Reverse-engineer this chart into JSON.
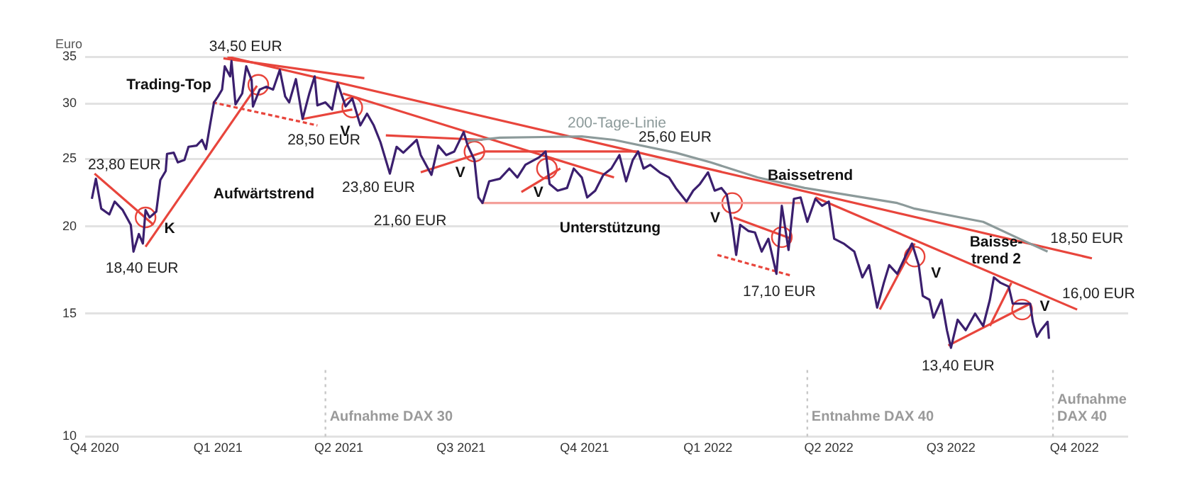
{
  "chart_data": {
    "type": "line",
    "ylabel": "Euro",
    "log": "y",
    "grid": "y",
    "legend": false,
    "xlim": [
      "2020-09-24",
      "2022-11-10"
    ],
    "xticks": [
      {
        "value": "2020-10-01",
        "label": "Q4 2020"
      },
      {
        "value": "2021-01-01",
        "label": "Q1 2021"
      },
      {
        "value": "2021-04-01",
        "label": "Q2 2021"
      },
      {
        "value": "2021-07-01",
        "label": "Q3 2021"
      },
      {
        "value": "2021-10-01",
        "label": "Q4 2021"
      },
      {
        "value": "2022-01-01",
        "label": "Q1 2022"
      },
      {
        "value": "2022-04-01",
        "label": "Q2 2022"
      },
      {
        "value": "2022-07-01",
        "label": "Q3 2022"
      },
      {
        "value": "2022-10-01",
        "label": "Q4 2022"
      }
    ],
    "ylim": [
      10,
      35
    ],
    "yticks": [
      10,
      15,
      20,
      25,
      30,
      35
    ],
    "series": [
      {
        "color": "#3b1f6e",
        "marker": "none",
        "x": [
          "2020-09-29",
          "2020-10-02",
          "2020-10-06",
          "2020-10-12",
          "2020-10-16",
          "2020-10-22",
          "2020-10-28",
          "2020-10-30",
          "2020-11-03",
          "2020-11-06",
          "2020-11-08",
          "2020-11-11",
          "2020-11-16",
          "2020-11-19",
          "2020-11-23",
          "2020-11-24",
          "2020-11-29",
          "2020-12-02",
          "2020-12-07",
          "2020-12-10",
          "2020-12-16",
          "2020-12-20",
          "2020-12-23",
          "2020-12-26",
          "2020-12-29",
          "2021-01-01",
          "2021-01-04",
          "2021-01-06",
          "2021-01-10",
          "2021-01-11",
          "2021-01-14",
          "2021-01-19",
          "2021-01-22",
          "2021-01-26",
          "2021-01-27",
          "2021-02-01",
          "2021-02-06",
          "2021-02-11",
          "2021-02-16",
          "2021-02-20",
          "2021-02-23",
          "2021-02-28",
          "2021-03-05",
          "2021-03-10",
          "2021-03-14",
          "2021-03-16",
          "2021-03-22",
          "2021-03-27",
          "2021-03-31",
          "2021-04-06",
          "2021-04-11",
          "2021-04-17",
          "2021-04-22",
          "2021-04-27",
          "2021-05-02",
          "2021-05-09",
          "2021-05-14",
          "2021-05-19",
          "2021-05-29",
          "2021-06-01",
          "2021-06-09",
          "2021-06-14",
          "2021-06-20",
          "2021-06-26",
          "2021-07-03",
          "2021-07-06",
          "2021-07-11",
          "2021-07-14",
          "2021-07-17",
          "2021-07-22",
          "2021-07-30",
          "2021-08-06",
          "2021-08-12",
          "2021-08-18",
          "2021-08-28",
          "2021-09-02",
          "2021-09-05",
          "2021-09-11",
          "2021-09-18",
          "2021-09-23",
          "2021-09-29",
          "2021-10-03",
          "2021-10-09",
          "2021-10-15",
          "2021-10-21",
          "2021-10-27",
          "2021-11-01",
          "2021-11-06",
          "2021-11-10",
          "2021-11-14",
          "2021-11-19",
          "2021-11-26",
          "2021-12-03",
          "2021-12-08",
          "2021-12-16",
          "2021-12-21",
          "2021-12-26",
          "2022-01-01",
          "2022-01-06",
          "2022-01-11",
          "2022-01-15",
          "2022-01-19",
          "2022-01-22",
          "2022-01-25",
          "2022-01-31",
          "2022-02-05",
          "2022-02-10",
          "2022-02-15",
          "2022-02-21",
          "2022-02-25",
          "2022-03-02",
          "2022-03-06",
          "2022-03-11",
          "2022-03-16",
          "2022-03-22",
          "2022-03-27",
          "2022-04-01",
          "2022-04-05",
          "2022-04-12",
          "2022-04-20",
          "2022-04-26",
          "2022-05-01",
          "2022-05-07",
          "2022-05-12",
          "2022-05-16",
          "2022-05-22",
          "2022-05-28",
          "2022-06-02",
          "2022-06-07",
          "2022-06-10",
          "2022-06-15",
          "2022-06-18",
          "2022-06-24",
          "2022-06-28",
          "2022-07-01",
          "2022-07-06",
          "2022-07-12",
          "2022-07-19",
          "2022-07-25",
          "2022-07-30",
          "2022-08-02",
          "2022-08-07",
          "2022-08-13",
          "2022-08-16",
          "2022-08-23",
          "2022-08-29",
          "2022-08-31",
          "2022-09-03",
          "2022-09-06",
          "2022-09-11",
          "2022-09-12"
        ],
        "values": [
          21.9,
          23.4,
          21.2,
          20.8,
          21.7,
          21.1,
          20.1,
          18.4,
          19.5,
          18.9,
          21.1,
          20.6,
          21.0,
          23.3,
          24.0,
          25.4,
          25.5,
          24.7,
          24.9,
          26.0,
          26.1,
          26.6,
          25.8,
          27.9,
          30.1,
          30.7,
          31.4,
          33.9,
          32.8,
          34.5,
          29.9,
          31.0,
          33.9,
          32.4,
          29.7,
          31.4,
          31.7,
          31.4,
          33.5,
          30.7,
          30.1,
          32.5,
          28.5,
          31.0,
          32.8,
          29.8,
          30.1,
          29.4,
          32.1,
          29.7,
          30.5,
          27.9,
          29.0,
          27.9,
          26.4,
          23.8,
          26.0,
          25.5,
          26.6,
          25.3,
          23.7,
          26.1,
          25.3,
          25.6,
          27.3,
          26.1,
          24.9,
          22.0,
          21.6,
          23.2,
          23.4,
          24.2,
          23.5,
          24.5,
          25.1,
          25.6,
          23.0,
          22.5,
          22.7,
          24.2,
          23.5,
          22.0,
          22.5,
          23.7,
          24.2,
          25.3,
          23.2,
          24.9,
          25.6,
          24.2,
          24.5,
          23.9,
          23.5,
          22.7,
          21.7,
          22.5,
          23.0,
          23.9,
          22.5,
          22.7,
          22.2,
          20.1,
          18.2,
          20.1,
          19.7,
          19.6,
          18.4,
          19.2,
          17.1,
          21.4,
          18.5,
          21.9,
          22.0,
          20.3,
          21.9,
          21.4,
          21.7,
          19.2,
          18.9,
          18.4,
          16.9,
          17.6,
          15.3,
          16.6,
          17.6,
          17.1,
          18.1,
          18.9,
          17.6,
          15.9,
          15.7,
          14.8,
          15.7,
          14.2,
          13.4,
          14.7,
          14.2,
          15.0,
          14.4,
          15.7,
          16.9,
          16.6,
          16.4,
          15.5,
          15.5,
          15.5,
          14.6,
          13.9,
          14.2,
          14.6,
          13.8
        ]
      },
      {
        "type": "line",
        "name": "200-Tage-Linie",
        "color": "#8c9a9a",
        "marker": "none",
        "x": [
          "2021-07-06",
          "2021-07-30",
          "2021-09-29",
          "2021-10-23",
          "2021-12-08",
          "2022-01-03",
          "2022-02-07",
          "2022-03-14",
          "2022-05-22",
          "2022-06-04",
          "2022-07-25",
          "2022-08-21",
          "2022-09-11"
        ],
        "values": [
          26.5,
          26.8,
          26.9,
          26.6,
          25.5,
          24.7,
          23.5,
          22.7,
          21.6,
          21.2,
          20.3,
          19.2,
          18.4
        ]
      },
      {
        "type": "line",
        "color": "#e8453c",
        "marker": "none",
        "x": [
          "2020-10-01",
          "2020-11-14"
        ],
        "values": [
          23.8,
          20.1
        ]
      },
      {
        "type": "line",
        "color": "#e8453c",
        "marker": "none",
        "x": [
          "2020-11-08",
          "2021-01-30"
        ],
        "values": [
          18.7,
          31.8
        ]
      },
      {
        "type": "line",
        "color": "#e8453c",
        "marker": "none",
        "x": [
          "2021-01-05",
          "2021-04-20"
        ],
        "values": [
          34.8,
          32.6
        ]
      },
      {
        "type": "line",
        "color": "#e8453c",
        "marker": "none",
        "line_style": "dashed",
        "x": [
          "2020-12-28",
          "2021-03-16"
        ],
        "values": [
          30.1,
          27.9
        ]
      },
      {
        "type": "line",
        "color": "#e8453c",
        "marker": "none",
        "x": [
          "2021-03-05",
          "2021-04-11"
        ],
        "values": [
          28.5,
          29.4
        ]
      },
      {
        "type": "line",
        "color": "#e8453c",
        "marker": "none",
        "x": [
          "2021-01-08",
          "2022-10-14"
        ],
        "values": [
          35.0,
          18.0
        ]
      },
      {
        "type": "line",
        "color": "#e8453c",
        "marker": "none",
        "x": [
          "2021-04-04",
          "2021-10-23"
        ],
        "values": [
          31.0,
          23.5
        ]
      },
      {
        "type": "line",
        "color": "#e8453c",
        "marker": "none",
        "x": [
          "2021-05-06",
          "2021-07-17"
        ],
        "values": [
          27.0,
          26.6
        ]
      },
      {
        "type": "line",
        "color": "#e8453c",
        "marker": "none",
        "x": [
          "2021-06-01",
          "2021-07-19",
          "2021-11-10"
        ],
        "values": [
          23.9,
          25.6,
          25.6
        ]
      },
      {
        "type": "line",
        "color": "#e8453c",
        "marker": "none",
        "x": [
          "2021-08-15",
          "2021-09-13"
        ],
        "values": [
          22.4,
          24.2
        ]
      },
      {
        "type": "line",
        "color": "#f4a09a",
        "marker": "none",
        "x": [
          "2021-07-16",
          "2022-03-11"
        ],
        "values": [
          21.6,
          21.6
        ]
      },
      {
        "type": "line",
        "color": "#e8453c",
        "marker": "none",
        "line_style": "dashed",
        "x": [
          "2022-01-08",
          "2022-03-04"
        ],
        "values": [
          18.2,
          17.0
        ]
      },
      {
        "type": "line",
        "color": "#e8453c",
        "marker": "none",
        "x": [
          "2022-01-20",
          "2022-03-04"
        ],
        "values": [
          20.6,
          19.2
        ]
      },
      {
        "type": "line",
        "color": "#e8453c",
        "marker": "none",
        "x": [
          "2022-03-22",
          "2022-10-03"
        ],
        "values": [
          22.0,
          15.2
        ]
      },
      {
        "type": "line",
        "color": "#e8453c",
        "marker": "none",
        "x": [
          "2022-05-09",
          "2022-06-04"
        ],
        "values": [
          15.2,
          18.9
        ]
      },
      {
        "type": "line",
        "color": "#e8453c",
        "marker": "none",
        "x": [
          "2022-06-29",
          "2022-08-29"
        ],
        "values": [
          13.5,
          15.5
        ]
      },
      {
        "type": "line",
        "color": "#e8453c",
        "marker": "none",
        "x": [
          "2022-07-30",
          "2022-08-15"
        ],
        "values": [
          14.4,
          16.6
        ]
      },
      {
        "type": "scatter",
        "color": "#e8453c",
        "marker": "circle",
        "x": [
          "2020-11-08",
          "2021-01-31",
          "2021-04-11",
          "2021-07-11",
          "2021-09-03",
          "2022-01-19",
          "2022-02-25",
          "2022-06-04",
          "2022-08-23"
        ],
        "values": [
          20.6,
          31.9,
          29.6,
          25.6,
          24.2,
          21.6,
          19.3,
          18.1,
          15.2
        ]
      }
    ],
    "ref_lines": [
      {
        "axis": "x",
        "value": "2021-03-22",
        "label": "Aufnahme DAX 30",
        "color": "#c8c8c8",
        "line_style": "dotted"
      },
      {
        "axis": "x",
        "value": "2022-03-16",
        "label": "Entnahme DAX 40",
        "color": "#c8c8c8",
        "line_style": "dotted"
      },
      {
        "axis": "x",
        "value": "2022-09-15",
        "label": "Aufnahme\nDAX 40",
        "color": "#c8c8c8",
        "line_style": "dotted"
      }
    ],
    "annotations": [
      "Trading-Top",
      {
        "text": "23,80 EUR",
        "x": "2020-10-01",
        "y": 23.8
      },
      {
        "text": "18,40 EUR",
        "x": "2020-10-30",
        "y": 18.4
      },
      {
        "text": "K",
        "x": "2020-11-08",
        "y": 20.6
      },
      {
        "text": "34,50 EUR",
        "x": "2021-01-11",
        "y": 34.5
      },
      "Aufwärtstrend",
      {
        "text": "28,50 EUR",
        "x": "2021-03-05",
        "y": 28.5
      },
      {
        "text": "V",
        "x": "2021-04-11",
        "y": 29.6
      },
      {
        "text": "23,80 EUR",
        "x": "2021-05-09",
        "y": 23.8
      },
      {
        "text": "21,60 EUR",
        "x": "2021-07-17",
        "y": 21.6
      },
      {
        "text": "V",
        "x": "2021-07-11",
        "y": 25.6
      },
      {
        "text": "V",
        "x": "2021-09-03",
        "y": 24.2
      },
      "Unterstützung",
      {
        "text": "25,60 EUR",
        "x": "2021-11-10",
        "y": 25.6
      },
      {
        "text": "V",
        "x": "2022-01-19",
        "y": 21.6
      },
      {
        "text": "17,10 EUR",
        "x": "2022-02-21",
        "y": 17.1
      },
      "Baissetrend",
      {
        "text": "V",
        "x": "2022-06-04",
        "y": 18.1
      },
      {
        "text": "13,40 EUR",
        "x": "2022-07-01",
        "y": 13.4
      },
      "Baisse-\ntrend 2",
      {
        "text": "V",
        "x": "2022-08-23",
        "y": 15.2
      },
      {
        "text": "18,50 EUR",
        "x": "2022-09-18",
        "y": 18.5
      },
      {
        "text": "16,00 EUR",
        "x": "2022-09-12",
        "y": 16.0
      }
    ]
  }
}
